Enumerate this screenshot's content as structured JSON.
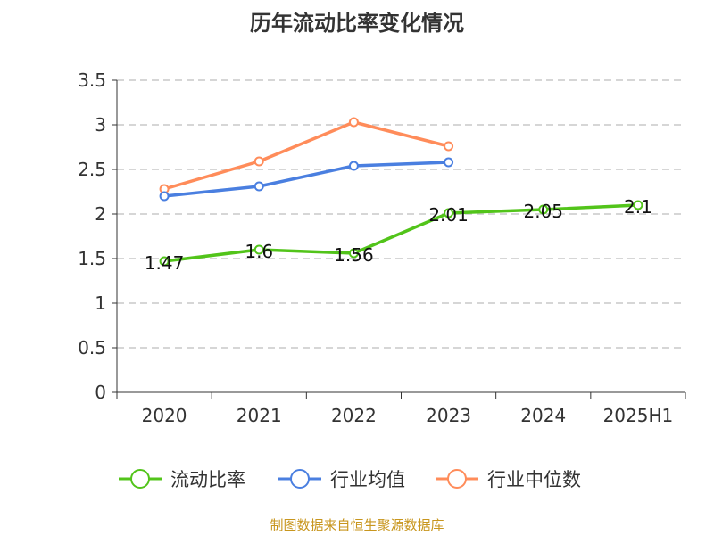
{
  "chart_data": {
    "type": "line",
    "title": "历年流动比率变化情况",
    "categories": [
      "2020",
      "2021",
      "2022",
      "2023",
      "2024",
      "2025H1"
    ],
    "ylim": [
      0,
      3.5
    ],
    "yticks": [
      "0",
      "0.5",
      "1",
      "1.5",
      "2",
      "2.5",
      "3",
      "3.5"
    ],
    "grid": true,
    "legend_position": "bottom",
    "series": [
      {
        "name": "流动比率",
        "color": "#52c41a",
        "values": [
          1.47,
          1.6,
          1.56,
          2.01,
          2.05,
          2.1
        ],
        "labels": [
          "1.47",
          "1.6",
          "1.56",
          "2.01",
          "2.05",
          "2.1"
        ]
      },
      {
        "name": "行业均值",
        "color": "#4a7fe0",
        "values": [
          2.2,
          2.31,
          2.54,
          2.58,
          null,
          null
        ]
      },
      {
        "name": "行业中位数",
        "color": "#ff8c5a",
        "values": [
          2.28,
          2.59,
          3.03,
          2.76,
          null,
          null
        ]
      }
    ]
  },
  "source": "制图数据来自恒生聚源数据库"
}
